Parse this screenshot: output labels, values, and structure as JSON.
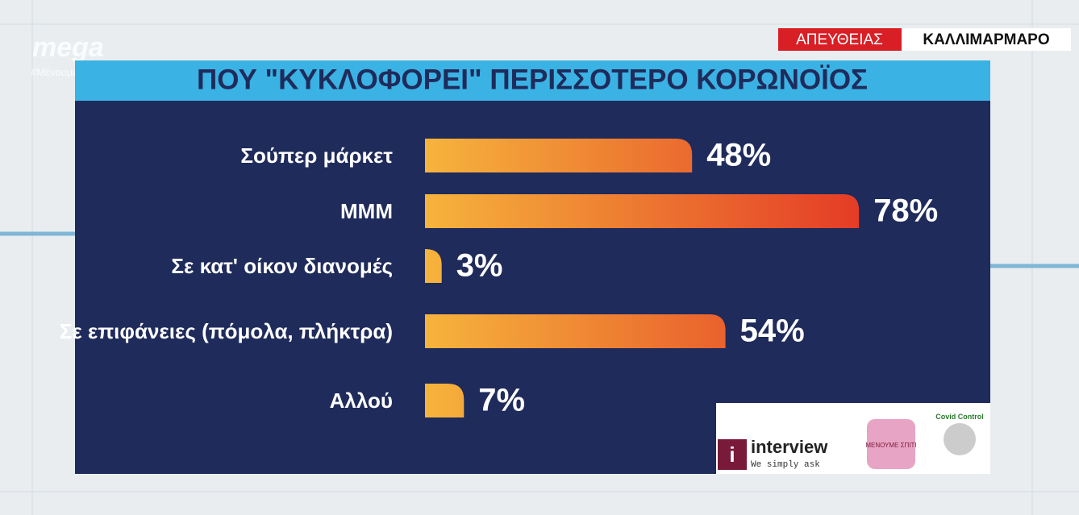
{
  "broadcast": {
    "channel": "mega",
    "hashtag": "#ΜένουμεΣπίτι",
    "live": "ΑΠΕΥΘΕΙΑΣ",
    "location": "ΚΑΛΛΙΜΑΡΜΑΡΟ"
  },
  "logos": {
    "interview": "interview",
    "interview_tagline": "We simply ask",
    "stay_home": "ΜΕΝΟΥΜΕ ΣΠΙΤΙ",
    "covid": "Covid Control"
  },
  "chart_data": {
    "type": "bar",
    "orientation": "horizontal",
    "title": "ΠΟΥ \"ΚΥΚΛΟΦΟΡΕΙ\" ΠΕΡΙΣΣΟΤΕΡΟ ΚΟΡΩΝΟΪΟΣ",
    "categories": [
      "Σούπερ μάρκετ",
      "ΜΜΜ",
      "Σε κατ' οίκον διανομές",
      "Σε επιφάνειες (πόμολα, πλήκτρα)",
      "Αλλού"
    ],
    "values": [
      48,
      78,
      3,
      54,
      7
    ],
    "value_labels": [
      "48%",
      "78%",
      "3%",
      "54%",
      "7%"
    ],
    "color": [
      "#f6b43c",
      "#e43c26"
    ]
  }
}
